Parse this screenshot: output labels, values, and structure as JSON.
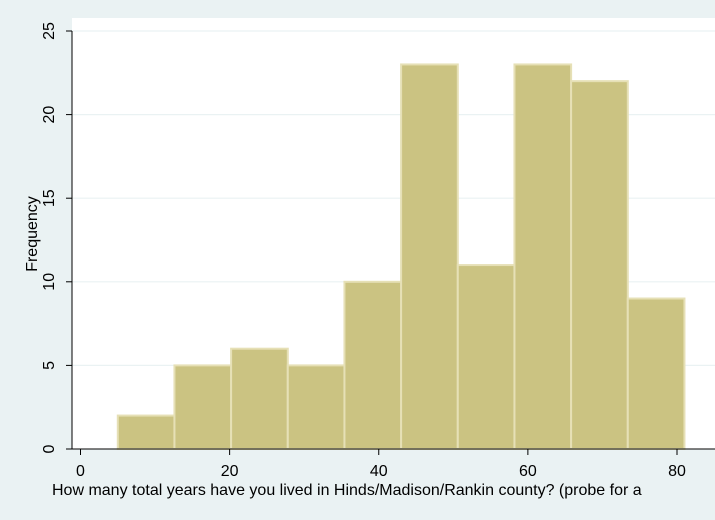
{
  "chart_data": {
    "type": "bar",
    "subtype": "histogram",
    "xlabel": "How many total years have you lived in Hinds/Madison/Rankin county? (probe for a",
    "ylabel": "Frequency",
    "xlim": [
      0,
      80
    ],
    "ylim": [
      0,
      25
    ],
    "x_ticks": [
      0,
      20,
      40,
      60,
      80
    ],
    "y_ticks": [
      0,
      5,
      10,
      15,
      20,
      25
    ],
    "bins": [
      {
        "start": 5.0,
        "end": 12.6,
        "value": 2
      },
      {
        "start": 12.6,
        "end": 20.2,
        "value": 5
      },
      {
        "start": 20.2,
        "end": 27.8,
        "value": 6
      },
      {
        "start": 27.8,
        "end": 35.4,
        "value": 5
      },
      {
        "start": 35.4,
        "end": 43.0,
        "value": 10
      },
      {
        "start": 43.0,
        "end": 50.6,
        "value": 23
      },
      {
        "start": 50.6,
        "end": 58.2,
        "value": 11
      },
      {
        "start": 58.2,
        "end": 65.8,
        "value": 23
      },
      {
        "start": 65.8,
        "end": 73.4,
        "value": 22
      },
      {
        "start": 73.4,
        "end": 81.0,
        "value": 9
      }
    ],
    "grid": "horizontal",
    "legend": "none",
    "colors": {
      "background": "#eaf2f3",
      "plot_background": "#ffffff",
      "bar_fill": "#cbc382",
      "bar_stroke": "#e6e0b6",
      "grid": "#eaf2f3",
      "axis": "#000000"
    }
  }
}
